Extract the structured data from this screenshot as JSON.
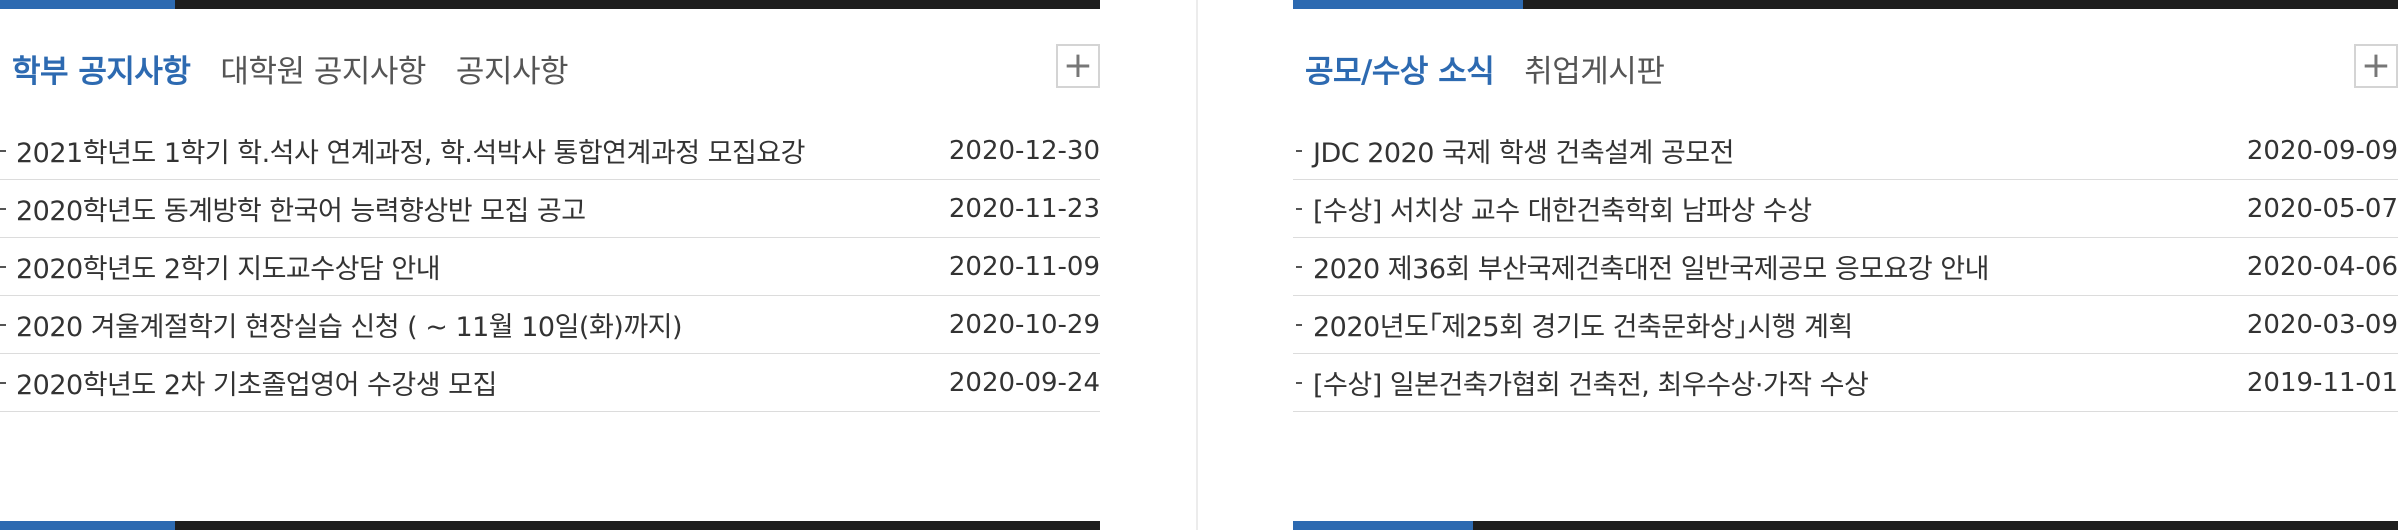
{
  "left_panel": {
    "tabs": [
      {
        "label": "학부 공지사항"
      },
      {
        "label": "대학원 공지사항"
      },
      {
        "label": "공지사항"
      }
    ],
    "more_label": "+",
    "items": [
      {
        "title": "2021학년도 1학기 학.석사 연계과정, 학.석박사 통합연계과정 모집요강",
        "date": "2020-12-30"
      },
      {
        "title": "2020학년도 동계방학 한국어 능력향상반 모집 공고",
        "date": "2020-11-23"
      },
      {
        "title": "2020학년도 2학기 지도교수상담 안내",
        "date": "2020-11-09"
      },
      {
        "title": "2020 겨울계절학기 현장실습 신청 ( ~ 11월 10일(화)까지)",
        "date": "2020-10-29"
      },
      {
        "title": "2020학년도 2차 기초졸업영어 수강생 모집",
        "date": "2020-09-24"
      }
    ]
  },
  "right_panel": {
    "tabs": [
      {
        "label": "공모/수상 소식"
      },
      {
        "label": "취업게시판"
      }
    ],
    "more_label": "+",
    "items": [
      {
        "title": "JDC 2020 국제 학생 건축설계 공모전",
        "date": "2020-09-09"
      },
      {
        "title": "[수상] 서치상 교수 대한건축학회 남파상 수상",
        "date": "2020-05-07"
      },
      {
        "title": "2020 제36회 부산국제건축대전 일반국제공모 응모요강 안내",
        "date": "2020-04-06"
      },
      {
        "title": "2020년도｢제25회 경기도 건축문화상｣시행 계획",
        "date": "2020-03-09"
      },
      {
        "title": "[수상] 일본건축가협회 건축전, 최우수상·가작 수상",
        "date": "2019-11-01"
      }
    ]
  },
  "colors": {
    "accent": "#2d6ab1",
    "bar": "#1e1e1e",
    "text": "#333333",
    "tab_inactive": "#555555"
  }
}
